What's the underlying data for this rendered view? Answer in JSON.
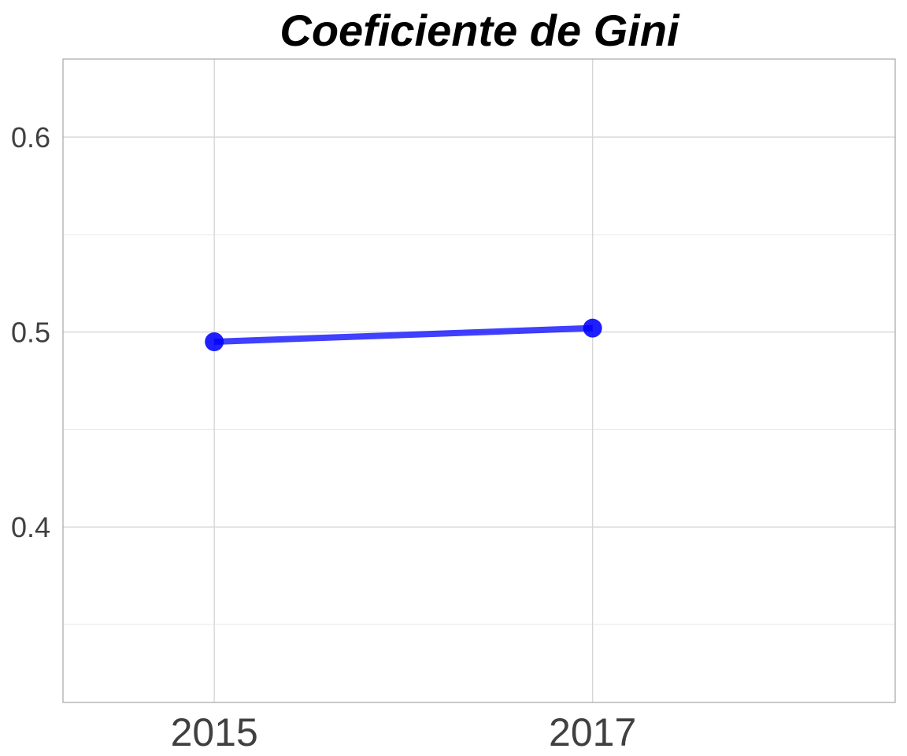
{
  "chart_data": {
    "type": "line",
    "title": "Coeficiente de Gini",
    "xlabel": "",
    "ylabel": "",
    "categories": [
      "2015",
      "2017"
    ],
    "series": [
      {
        "values": [
          0.495,
          0.502
        ],
        "color": "#0000ff"
      }
    ],
    "xlim": [
      2014.2,
      2018.6
    ],
    "ylim": [
      0.31,
      0.64
    ],
    "y_ticks": [
      0.4,
      0.5,
      0.6
    ],
    "y_tick_labels": [
      "0.4",
      "0.5",
      "0.6"
    ],
    "y_minor_ticks": [
      0.35,
      0.45,
      0.55
    ],
    "grid": true,
    "legend": "none"
  }
}
